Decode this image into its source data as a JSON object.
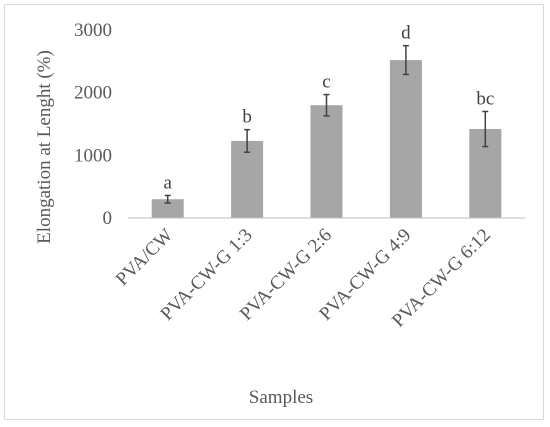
{
  "chart_data": {
    "type": "bar",
    "title": "",
    "xlabel": "Samples",
    "ylabel": "Elongation at Lenght (%)",
    "categories": [
      "PVA/CW",
      "PVA-CW-G 1:3",
      "PVA-CW-G 2:6",
      "PVA-CW-G 4:9",
      "PVA-CW-G 6:12"
    ],
    "values": [
      300,
      1230,
      1800,
      2520,
      1420
    ],
    "errors": [
      60,
      180,
      170,
      230,
      280
    ],
    "labels": [
      "a",
      "b",
      "c",
      "d",
      "bc"
    ],
    "ylim": [
      0,
      3000
    ],
    "yticks": [
      0,
      1000,
      2000,
      3000
    ],
    "grid": false,
    "legend": "none",
    "bar_color": "#a6a6a6",
    "error_color": "#404040",
    "axis_color": "#bfbfbf",
    "text_color": "#595959"
  }
}
